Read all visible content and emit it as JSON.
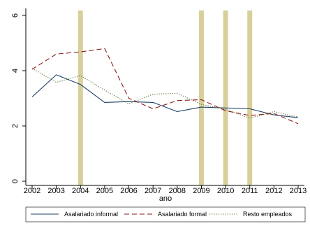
{
  "chart_data": {
    "type": "line",
    "title": "",
    "xlabel": "ano",
    "ylabel": "",
    "x": [
      2002,
      2003,
      2004,
      2005,
      2006,
      2007,
      2008,
      2009,
      2010,
      2011,
      2012,
      2013
    ],
    "xlim": [
      2002,
      2013
    ],
    "ylim": [
      0,
      6
    ],
    "yticks": [
      0,
      2,
      4,
      6
    ],
    "grid": false,
    "legend_position": "bottom",
    "highlight_years": [
      2004,
      2009,
      2010,
      2011
    ],
    "highlight_color": "#d8d09c",
    "series": [
      {
        "name": "Asalariado informal",
        "color": "#1f3f66",
        "dash": "solid",
        "values": [
          3.05,
          3.85,
          3.5,
          2.85,
          2.88,
          2.85,
          2.52,
          2.68,
          2.65,
          2.62,
          2.4,
          2.3
        ]
      },
      {
        "name": "Asalariado formal",
        "color": "#8b1a1a",
        "dash": "dashed",
        "values": [
          4.05,
          4.6,
          4.68,
          4.8,
          3.0,
          2.62,
          2.92,
          2.95,
          2.55,
          2.38,
          2.45,
          2.08
        ]
      },
      {
        "name": "Resto empleados",
        "color": "#5c6e2b",
        "dash": "dotted",
        "values": [
          4.08,
          3.58,
          3.82,
          3.3,
          2.8,
          3.15,
          3.18,
          2.78,
          2.6,
          2.28,
          2.52,
          2.32
        ]
      }
    ]
  }
}
